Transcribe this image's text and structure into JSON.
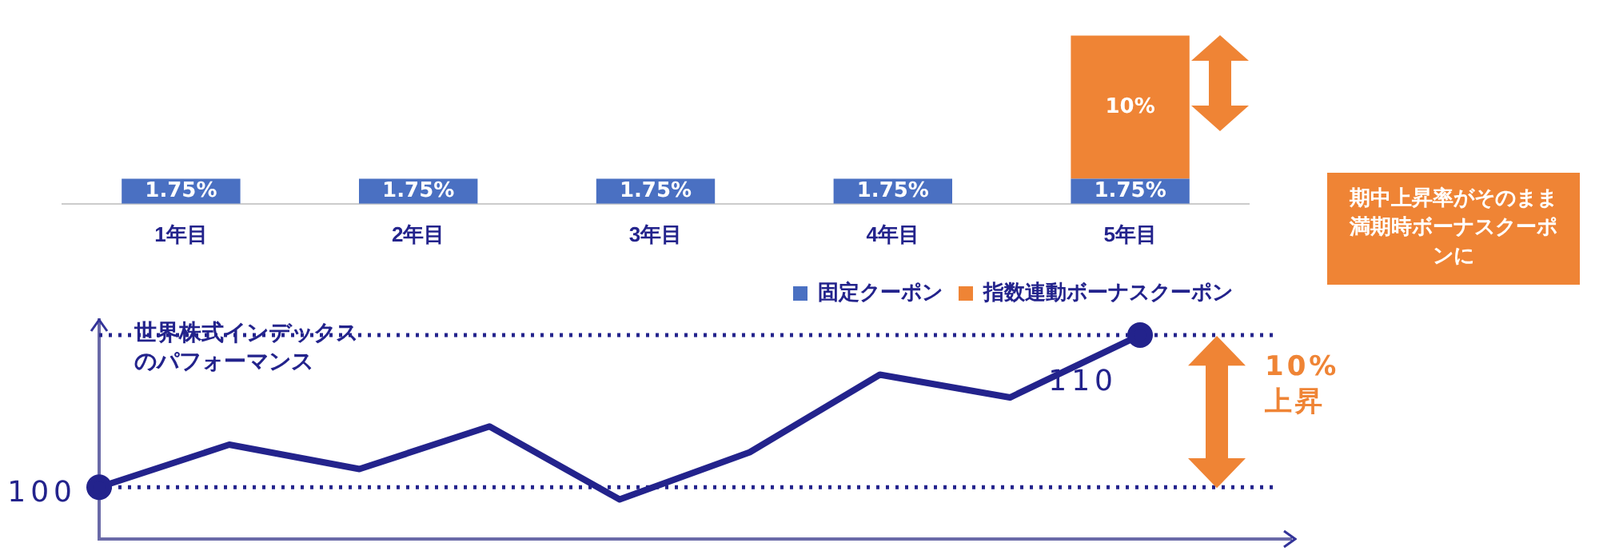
{
  "chart_data": [
    {
      "type": "bar",
      "stacked": true,
      "categories": [
        "1年目",
        "2年目",
        "3年目",
        "4年目",
        "5年目"
      ],
      "ylim": [
        0,
        12
      ],
      "tick_labels": "x",
      "grid": false,
      "legend": "bottom right",
      "series": [
        {
          "name": "固定クーポン",
          "color": "#4a70c2",
          "values": [
            1.75,
            1.75,
            1.75,
            1.75,
            1.75
          ],
          "value_labels": [
            "1.75%",
            "1.75%",
            "1.75%",
            "1.75%",
            "1.75%"
          ]
        },
        {
          "name": "指数連動ボーナスクーポン",
          "color": "#ef8435",
          "values": [
            null,
            null,
            null,
            null,
            10
          ],
          "value_labels": [
            null,
            null,
            null,
            null,
            "10%"
          ]
        }
      ]
    },
    {
      "type": "line",
      "categories": [
        null,
        null,
        null,
        null,
        null,
        null,
        null,
        null,
        null
      ],
      "ylim": [
        96.6,
        111
      ],
      "tick_labels": false,
      "grid": false,
      "legend": false,
      "marker": "none",
      "ylabel": "世界株式インデックスのパフォーマンス",
      "series": [
        {
          "color": "#23238c",
          "values": [
            100,
            102.8,
            101.2,
            104.0,
            99.2,
            102.3,
            107.4,
            105.9,
            110
          ],
          "value_labels": [
            "100",
            null,
            null,
            null,
            null,
            null,
            null,
            null,
            "110"
          ]
        }
      ],
      "ref_lines": [
        {
          "axis": "y",
          "value": 100,
          "color": "#23238c",
          "line_style": "dotted"
        },
        {
          "axis": "y",
          "value": 110,
          "color": "#23238c",
          "line_style": "dotted"
        }
      ],
      "annotations": [
        "10%上昇",
        "期中上昇率がそのまま満期時ボーナスクーポンに"
      ]
    }
  ]
}
